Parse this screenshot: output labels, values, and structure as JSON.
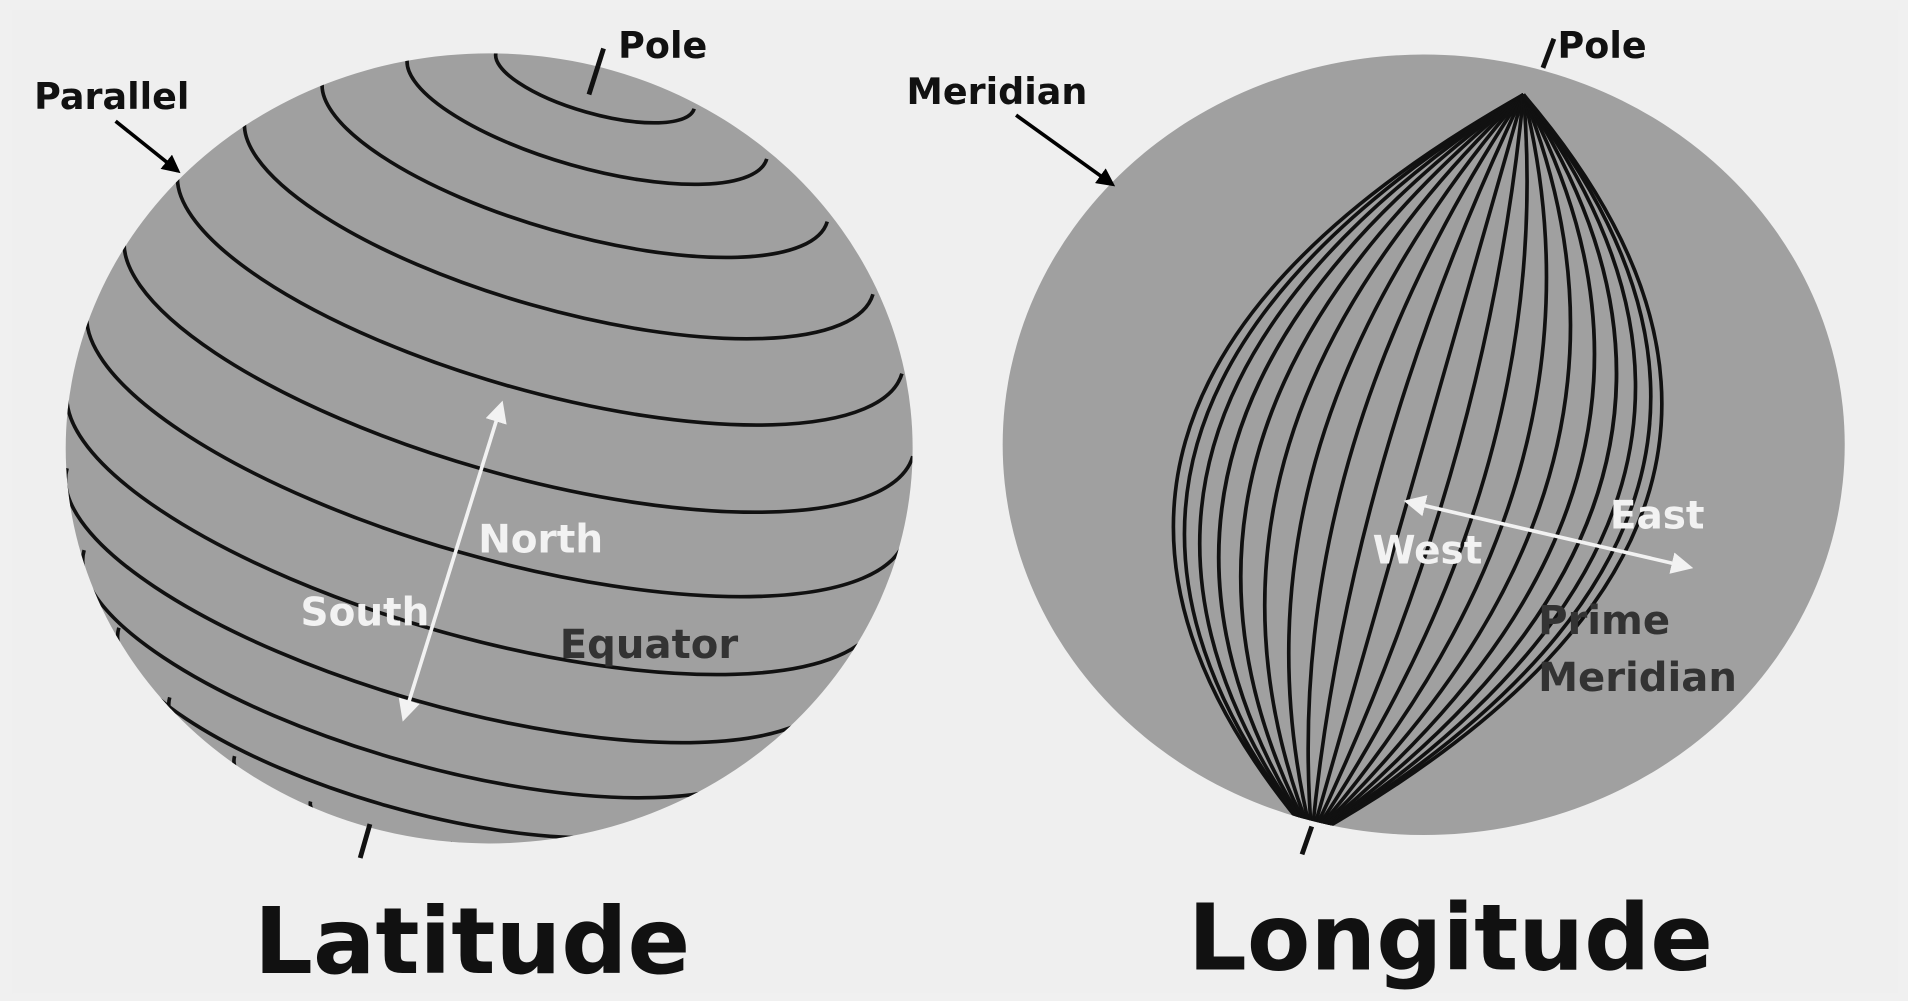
{
  "latitude": {
    "title": "Latitude",
    "labels": {
      "pole": "Pole",
      "parallel": "Parallel",
      "north": "North",
      "south": "South",
      "equator": "Equator"
    }
  },
  "longitude": {
    "title": "Longitude",
    "labels": {
      "pole": "Pole",
      "meridian": "Meridian",
      "west": "West",
      "east": "East",
      "prime_meridian": [
        "Prime",
        "Meridian"
      ]
    }
  }
}
